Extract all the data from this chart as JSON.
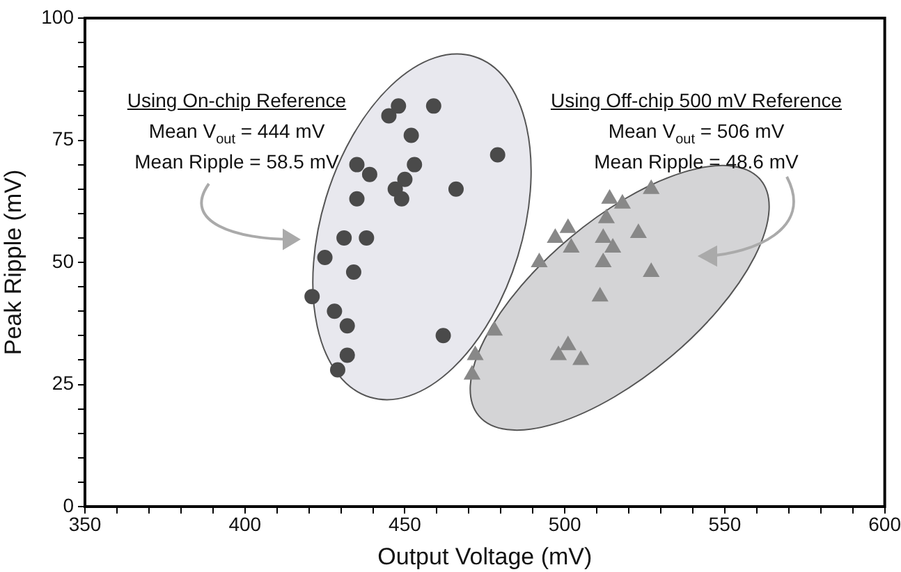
{
  "chart_data": {
    "type": "scatter",
    "xlabel": "Output Voltage (mV)",
    "ylabel": "Peak Ripple (mV)",
    "xlim": [
      350,
      600
    ],
    "ylim": [
      0,
      100
    ],
    "xticks": [
      350,
      {
        "value": 360,
        "label": null
      },
      {
        "value": 370,
        "label": null
      },
      {
        "value": 380,
        "label": null
      },
      {
        "value": 390,
        "label": null
      },
      400,
      {
        "value": 410,
        "label": null
      },
      {
        "value": 420,
        "label": null
      },
      {
        "value": 430,
        "label": null
      },
      {
        "value": 440,
        "label": null
      },
      450,
      {
        "value": 460,
        "label": null
      },
      {
        "value": 470,
        "label": null
      },
      {
        "value": 480,
        "label": null
      },
      {
        "value": 490,
        "label": null
      },
      500,
      {
        "value": 510,
        "label": null
      },
      {
        "value": 520,
        "label": null
      },
      {
        "value": 530,
        "label": null
      },
      {
        "value": 540,
        "label": null
      },
      550,
      {
        "value": 560,
        "label": null
      },
      {
        "value": 570,
        "label": null
      },
      {
        "value": 580,
        "label": null
      },
      {
        "value": 590,
        "label": null
      },
      600
    ],
    "yticks": [
      0,
      {
        "value": 5,
        "label": null
      },
      {
        "value": 10,
        "label": null
      },
      {
        "value": 15,
        "label": null
      },
      {
        "value": 20,
        "label": null
      },
      25,
      {
        "value": 30,
        "label": null
      },
      {
        "value": 35,
        "label": null
      },
      {
        "value": 40,
        "label": null
      },
      {
        "value": 45,
        "label": null
      },
      50,
      {
        "value": 55,
        "label": null
      },
      {
        "value": 60,
        "label": null
      },
      {
        "value": 65,
        "label": null
      },
      {
        "value": 70,
        "label": null
      },
      75,
      {
        "value": 80,
        "label": null
      },
      {
        "value": 85,
        "label": null
      },
      {
        "value": 90,
        "label": null
      },
      {
        "value": 95,
        "label": null
      },
      100
    ],
    "grid": false,
    "legend": false,
    "series": [
      {
        "color": "#4a4a4a",
        "marker": "circle",
        "x": [
          445,
          452,
          479,
          435,
          439,
          453,
          450,
          447,
          449,
          466,
          435,
          431,
          438,
          425,
          434,
          421,
          428,
          432,
          462,
          432,
          429,
          448,
          459
        ],
        "values": [
          80,
          76,
          72,
          70,
          68,
          70,
          67,
          65,
          63,
          65,
          63,
          55,
          55,
          51,
          48,
          43,
          40,
          37,
          35,
          31,
          28,
          82,
          82
        ]
      },
      {
        "color": "#888888",
        "marker": "triangle",
        "x": [
          527,
          514,
          518,
          513,
          501,
          497,
          502,
          512,
          515,
          523,
          492,
          512,
          527,
          511,
          478,
          472,
          471,
          501,
          498,
          505
        ],
        "values": [
          65,
          63,
          62,
          59,
          57,
          55,
          53,
          55,
          53,
          56,
          50,
          50,
          48,
          43,
          36,
          31,
          27,
          33,
          31,
          30
        ]
      }
    ],
    "annotations": [
      "Using On-chip Reference",
      "Mean V$_{out}$ = 444 mV",
      "Mean Ripple = 58.5 mV",
      "Using Off-chip 500 mV Reference",
      "Mean V$_{out}$ = 506 mV",
      "Mean Ripple = 48.6 mV"
    ]
  }
}
